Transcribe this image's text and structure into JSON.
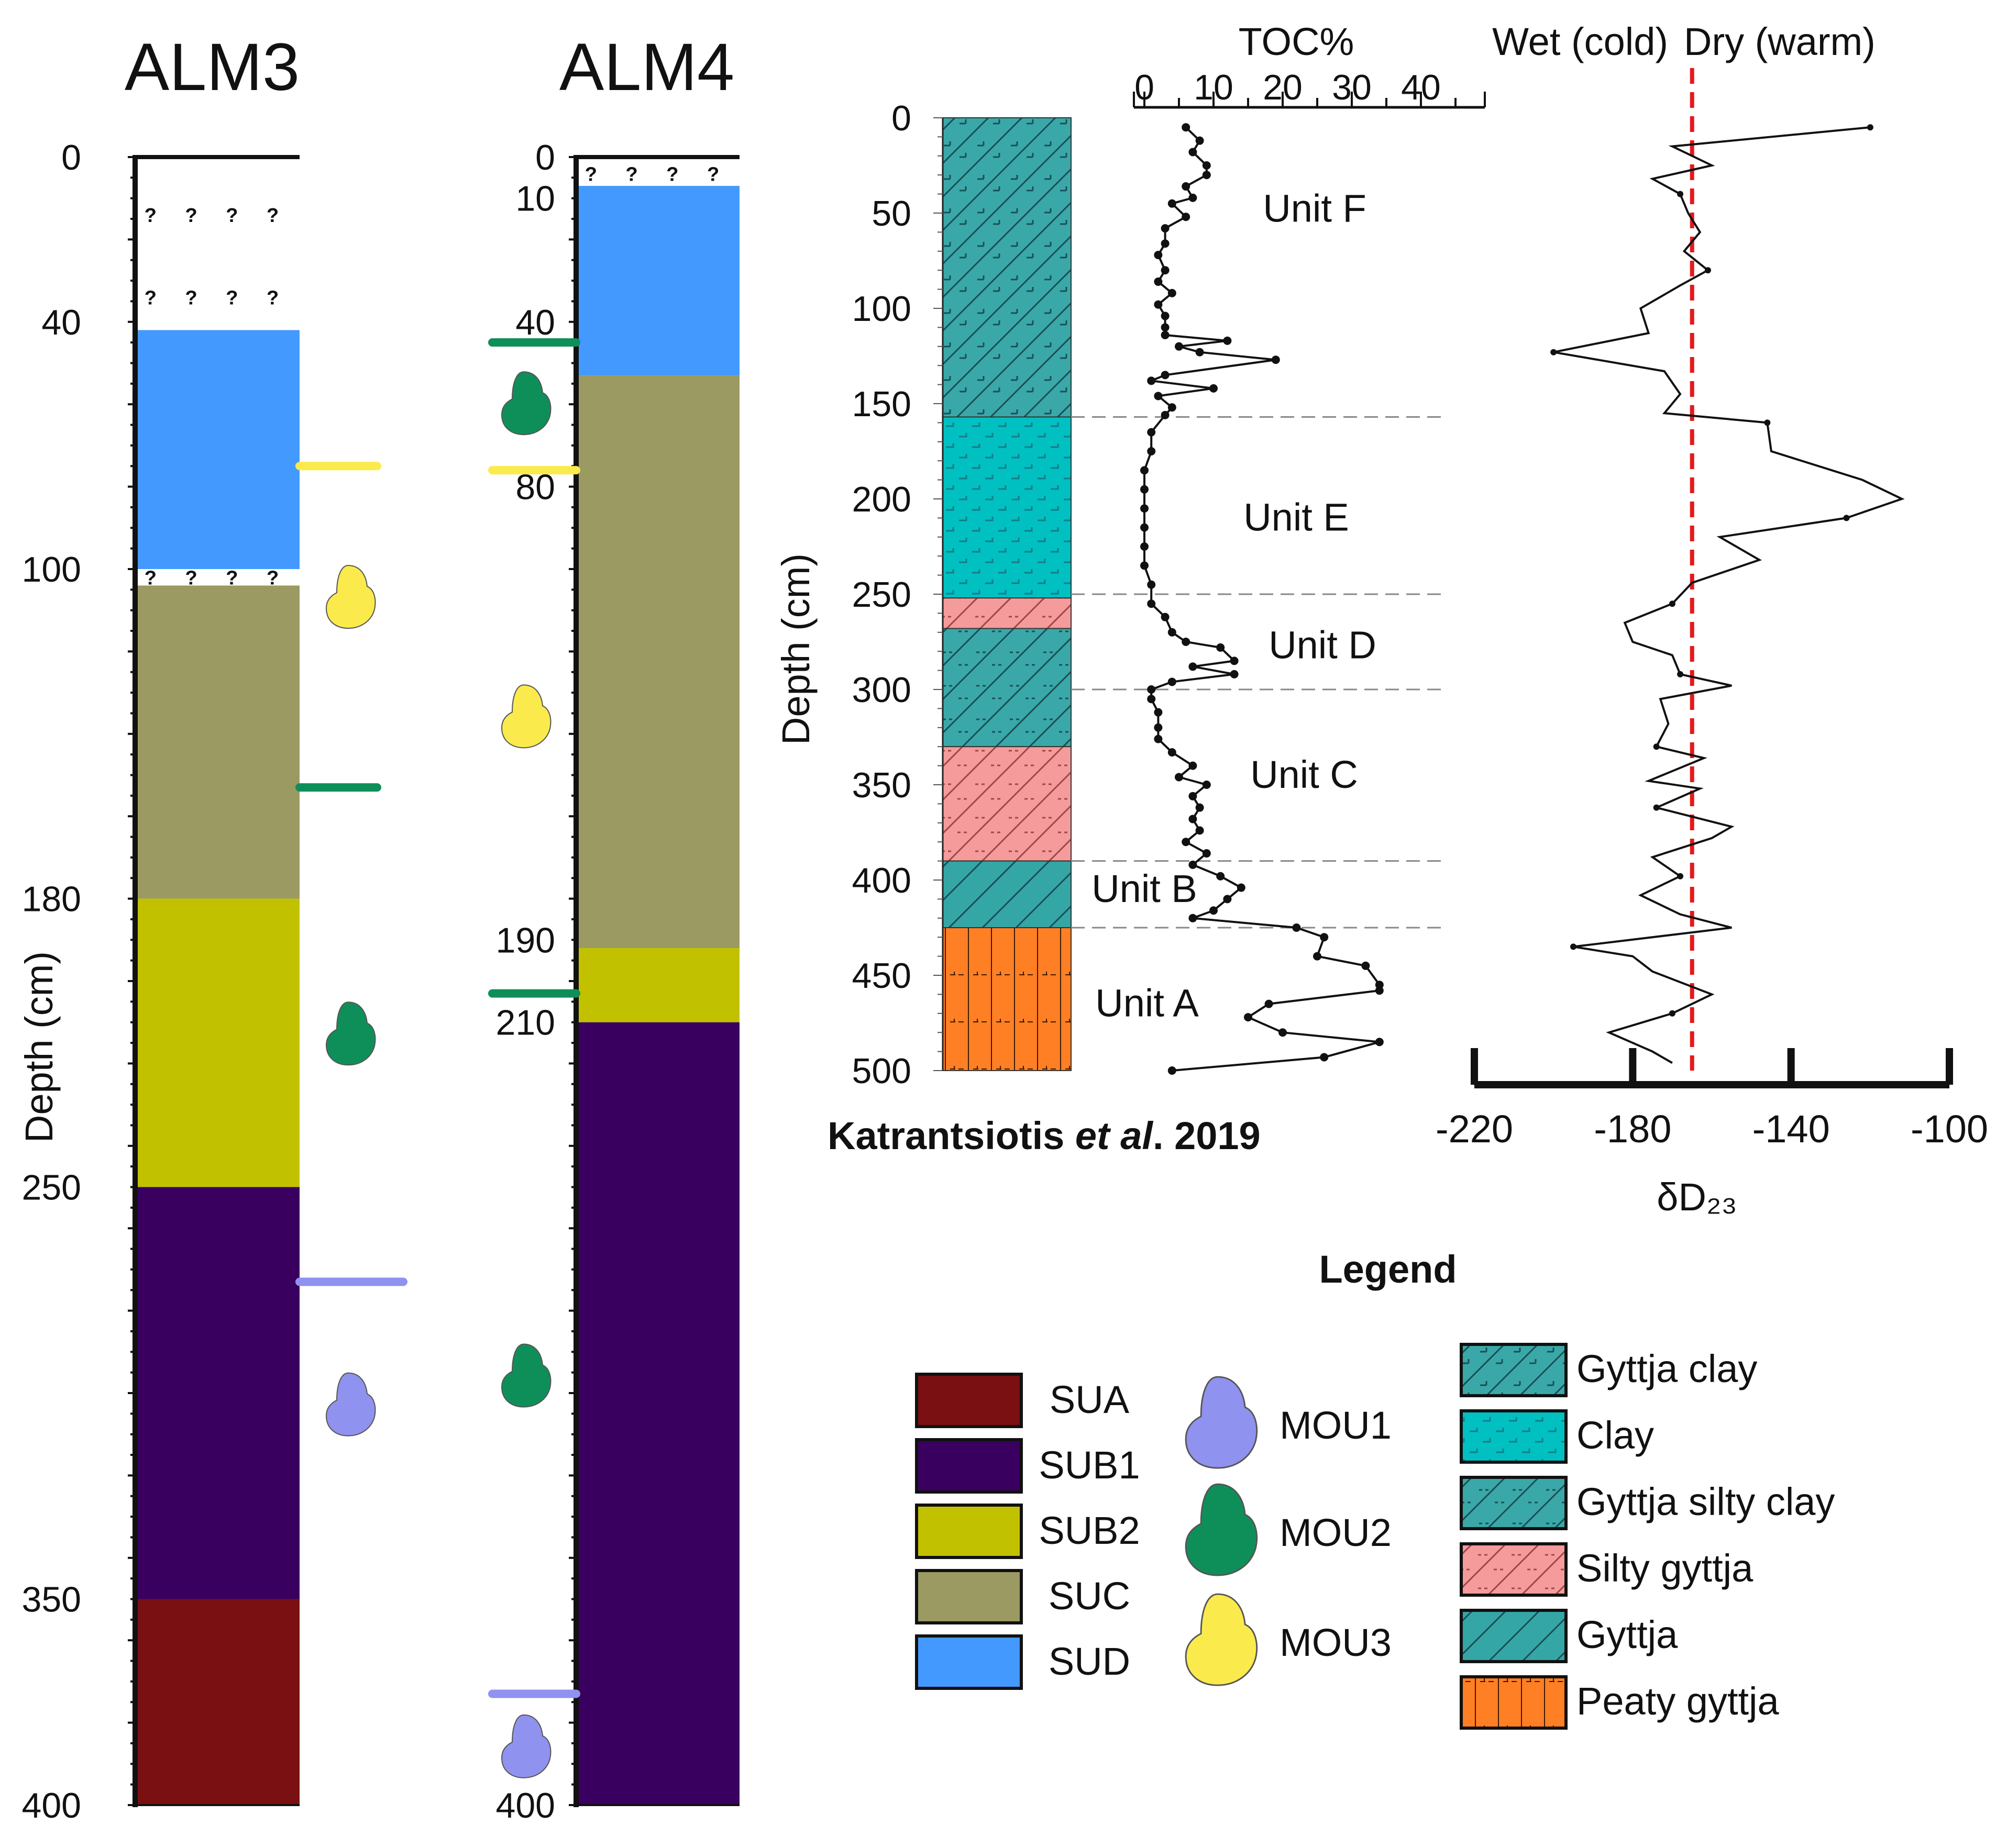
{
  "cores": [
    {
      "id": "ALM3",
      "title": "ALM3",
      "depth_label": "Depth (cm)",
      "tick_labels": [
        {
          "v": 0,
          "t": "0"
        },
        {
          "v": 40,
          "t": "40"
        },
        {
          "v": 100,
          "t": "100"
        },
        {
          "v": 180,
          "t": "180"
        },
        {
          "v": 250,
          "t": "250"
        },
        {
          "v": 350,
          "t": "350"
        },
        {
          "v": 400,
          "t": "400"
        }
      ],
      "unknown_marks": [
        {
          "v": 14,
          "t": "? ? ? ?"
        },
        {
          "v": 34,
          "t": "? ? ? ?"
        },
        {
          "v": 102,
          "t": "? ? ? ?"
        }
      ],
      "layers": [
        {
          "from": 0,
          "to": 42,
          "unit": "unknown"
        },
        {
          "from": 42,
          "to": 100,
          "unit": "SUD"
        },
        {
          "from": 100,
          "to": 104,
          "unit": "unknown"
        },
        {
          "from": 104,
          "to": 180,
          "unit": "SUC"
        },
        {
          "from": 180,
          "to": 250,
          "unit": "SUB2"
        },
        {
          "from": 250,
          "to": 350,
          "unit": "SUB1"
        },
        {
          "from": 350,
          "to": 400,
          "unit": "SUA"
        }
      ],
      "boundaries": [
        {
          "v": 75,
          "unit": "MOU3"
        },
        {
          "v": 153,
          "unit": "MOU2"
        },
        {
          "v": 273,
          "unit": "MOU1"
        }
      ],
      "mollusks": [
        {
          "v": 107,
          "unit": "MOU3"
        },
        {
          "v": 213,
          "unit": "MOU2"
        },
        {
          "v": 303,
          "unit": "MOU1"
        }
      ]
    },
    {
      "id": "ALM4",
      "title": "ALM4",
      "tick_labels": [
        {
          "v": 0,
          "t": "0"
        },
        {
          "v": 10,
          "t": "10"
        },
        {
          "v": 40,
          "t": "40"
        },
        {
          "v": 80,
          "t": "80"
        },
        {
          "v": 190,
          "t": "190"
        },
        {
          "v": 210,
          "t": "210"
        },
        {
          "v": 400,
          "t": "400"
        }
      ],
      "unknown_marks": [
        {
          "v": 4,
          "t": "? ? ? ?"
        }
      ],
      "layers": [
        {
          "from": 0,
          "to": 7,
          "unit": "unknown"
        },
        {
          "from": 7,
          "to": 53,
          "unit": "SUD"
        },
        {
          "from": 53,
          "to": 192,
          "unit": "SUC"
        },
        {
          "from": 192,
          "to": 210,
          "unit": "SUB2"
        },
        {
          "from": 210,
          "to": 400,
          "unit": "SUB1"
        }
      ],
      "boundaries": [
        {
          "v": 45,
          "unit": "MOU2"
        },
        {
          "v": 76,
          "unit": "MOU3"
        },
        {
          "v": 203,
          "unit": "MOU2"
        },
        {
          "v": 373,
          "unit": "MOU1"
        }
      ],
      "mollusks": [
        {
          "v": 60,
          "unit": "MOU2"
        },
        {
          "v": 136,
          "unit": "MOU3"
        },
        {
          "v": 296,
          "unit": "MOU2"
        },
        {
          "v": 386,
          "unit": "MOU1"
        }
      ]
    }
  ],
  "katrantsiotis": {
    "citation_pre": "Katrantsiotis ",
    "citation_italic": "et al",
    "citation_post": ". 2019",
    "depth_label": "Depth (cm)",
    "depth_ticks": [
      "0",
      "50",
      "100",
      "150",
      "200",
      "250",
      "300",
      "350",
      "400",
      "450",
      "500"
    ],
    "lithology": [
      {
        "from": 0,
        "to": 157,
        "type": "Gyttja clay"
      },
      {
        "from": 157,
        "to": 252,
        "type": "Clay"
      },
      {
        "from": 252,
        "to": 268,
        "type": "Silty gyttja"
      },
      {
        "from": 268,
        "to": 330,
        "type": "Gyttja silty clay"
      },
      {
        "from": 330,
        "to": 390,
        "type": "Silty gyttja"
      },
      {
        "from": 390,
        "to": 425,
        "type": "Gyttja"
      },
      {
        "from": 425,
        "to": 500,
        "type": "Peaty gyttja"
      }
    ],
    "unit_boundaries": [
      157,
      250,
      300,
      390,
      425
    ],
    "units": [
      {
        "name": "Unit F",
        "depth": 48
      },
      {
        "name": "Unit E",
        "depth": 210
      },
      {
        "name": "Unit D",
        "depth": 277
      },
      {
        "name": "Unit C",
        "depth": 345
      },
      {
        "name": "Unit B",
        "depth": 405
      },
      {
        "name": "Unit A",
        "depth": 465
      }
    ]
  },
  "chart_data": [
    {
      "type": "line",
      "title": "TOC%",
      "xlabel": "TOC%",
      "ylabel": "Depth (cm)",
      "xlim": [
        0,
        40
      ],
      "x_ticks": [
        "0",
        "10",
        "20",
        "30",
        "40"
      ],
      "ylim": [
        0,
        500
      ],
      "y_inverted": true,
      "points": [
        [
          6,
          5
        ],
        [
          8,
          12
        ],
        [
          7,
          18
        ],
        [
          9,
          25
        ],
        [
          9,
          30
        ],
        [
          6,
          36
        ],
        [
          7,
          42
        ],
        [
          4,
          45
        ],
        [
          6,
          52
        ],
        [
          3,
          58
        ],
        [
          3,
          66
        ],
        [
          2,
          72
        ],
        [
          3,
          80
        ],
        [
          2,
          86
        ],
        [
          4,
          92
        ],
        [
          2,
          98
        ],
        [
          3,
          104
        ],
        [
          3,
          110
        ],
        [
          3,
          114
        ],
        [
          12,
          117
        ],
        [
          5,
          120
        ],
        [
          8,
          123
        ],
        [
          19,
          127
        ],
        [
          3,
          135
        ],
        [
          1,
          138
        ],
        [
          10,
          142
        ],
        [
          2,
          146
        ],
        [
          4,
          152
        ],
        [
          3,
          156
        ],
        [
          1,
          165
        ],
        [
          1,
          175
        ],
        [
          0,
          185
        ],
        [
          0,
          195
        ],
        [
          0,
          205
        ],
        [
          0,
          215
        ],
        [
          0,
          225
        ],
        [
          0,
          235
        ],
        [
          1,
          245
        ],
        [
          1,
          255
        ],
        [
          3,
          262
        ],
        [
          4,
          270
        ],
        [
          6,
          275
        ],
        [
          11,
          278
        ],
        [
          13,
          285
        ],
        [
          7,
          288
        ],
        [
          13,
          292
        ],
        [
          4,
          296
        ],
        [
          1,
          300
        ],
        [
          1,
          305
        ],
        [
          2,
          312
        ],
        [
          2,
          320
        ],
        [
          2,
          326
        ],
        [
          4,
          333
        ],
        [
          7,
          340
        ],
        [
          5,
          346
        ],
        [
          9,
          350
        ],
        [
          7,
          356
        ],
        [
          8,
          362
        ],
        [
          7,
          368
        ],
        [
          8,
          374
        ],
        [
          6,
          380
        ],
        [
          9,
          386
        ],
        [
          7,
          392
        ],
        [
          11,
          398
        ],
        [
          14,
          404
        ],
        [
          12,
          410
        ],
        [
          10,
          416
        ],
        [
          7,
          420
        ],
        [
          22,
          425
        ],
        [
          26,
          430
        ],
        [
          25,
          440
        ],
        [
          32,
          445
        ],
        [
          34,
          455
        ],
        [
          34,
          458
        ],
        [
          18,
          465
        ],
        [
          15,
          472
        ],
        [
          20,
          480
        ],
        [
          34,
          485
        ],
        [
          26,
          493
        ],
        [
          4,
          500
        ]
      ]
    },
    {
      "type": "line",
      "xlabel": "δD₂₃",
      "header_left": "Wet (cold)",
      "header_right": "Dry (warm)",
      "xlim": [
        -220,
        -100
      ],
      "x_ticks": [
        "-220",
        "-180",
        "-140",
        "-100"
      ],
      "reference_line": -165,
      "points": [
        [
          -120,
          5
        ],
        [
          -170,
          15
        ],
        [
          -160,
          25
        ],
        [
          -175,
          32
        ],
        [
          -168,
          40
        ],
        [
          -166,
          50
        ],
        [
          -163,
          60
        ],
        [
          -167,
          70
        ],
        [
          -161,
          80
        ],
        [
          -168,
          88
        ],
        [
          -178,
          100
        ],
        [
          -176,
          113
        ],
        [
          -200,
          123
        ],
        [
          -172,
          133
        ],
        [
          -168,
          145
        ],
        [
          -172,
          155
        ],
        [
          -146,
          160
        ],
        [
          -145,
          175
        ],
        [
          -122,
          190
        ],
        [
          -112,
          200
        ],
        [
          -126,
          210
        ],
        [
          -158,
          220
        ],
        [
          -148,
          232
        ],
        [
          -165,
          244
        ],
        [
          -170,
          255
        ],
        [
          -182,
          265
        ],
        [
          -180,
          275
        ],
        [
          -170,
          282
        ],
        [
          -168,
          292
        ],
        [
          -155,
          298
        ],
        [
          -173,
          305
        ],
        [
          -171,
          318
        ],
        [
          -174,
          330
        ],
        [
          -162,
          336
        ],
        [
          -176,
          348
        ],
        [
          -163,
          352
        ],
        [
          -174,
          362
        ],
        [
          -155,
          372
        ],
        [
          -160,
          378
        ],
        [
          -175,
          388
        ],
        [
          -168,
          398
        ],
        [
          -178,
          408
        ],
        [
          -168,
          418
        ],
        [
          -155,
          425
        ],
        [
          -195,
          435
        ],
        [
          -180,
          440
        ],
        [
          -175,
          448
        ],
        [
          -160,
          460
        ],
        [
          -170,
          470
        ],
        [
          -186,
          480
        ],
        [
          -175,
          490
        ],
        [
          -170,
          496
        ]
      ]
    }
  ],
  "legend": {
    "title": "Legend",
    "stratigraphic_units": [
      {
        "label": "SUA",
        "color": "#7a1011"
      },
      {
        "label": "SUB1",
        "color": "#3a0060"
      },
      {
        "label": "SUB2",
        "color": "#c2c100"
      },
      {
        "label": "SUC",
        "color": "#9a9a62"
      },
      {
        "label": "SUD",
        "color": "#4499ff"
      }
    ],
    "mollusk_units": [
      {
        "label": "MOU1",
        "color": "#8f92ee"
      },
      {
        "label": "MOU2",
        "color": "#0e8f5a"
      },
      {
        "label": "MOU3",
        "color": "#fbea4c"
      }
    ],
    "lithology": [
      {
        "label": "Gyttja clay",
        "color": "#3aa8a8",
        "pattern": "gyttja-clay"
      },
      {
        "label": "Clay",
        "color": "#00c0c2",
        "pattern": "clay"
      },
      {
        "label": "Gyttja silty clay",
        "color": "#3aa8a8",
        "pattern": "gyttja-silty-clay"
      },
      {
        "label": "Silty gyttja",
        "color": "#f59b9b",
        "pattern": "silty-gyttja"
      },
      {
        "label": "Gyttja",
        "color": "#35a6a6",
        "pattern": "gyttja"
      },
      {
        "label": "Peaty gyttja",
        "color": "#ff7f24",
        "pattern": "peaty-gyttja"
      }
    ],
    "reference_line_color": "#e31a1c"
  }
}
